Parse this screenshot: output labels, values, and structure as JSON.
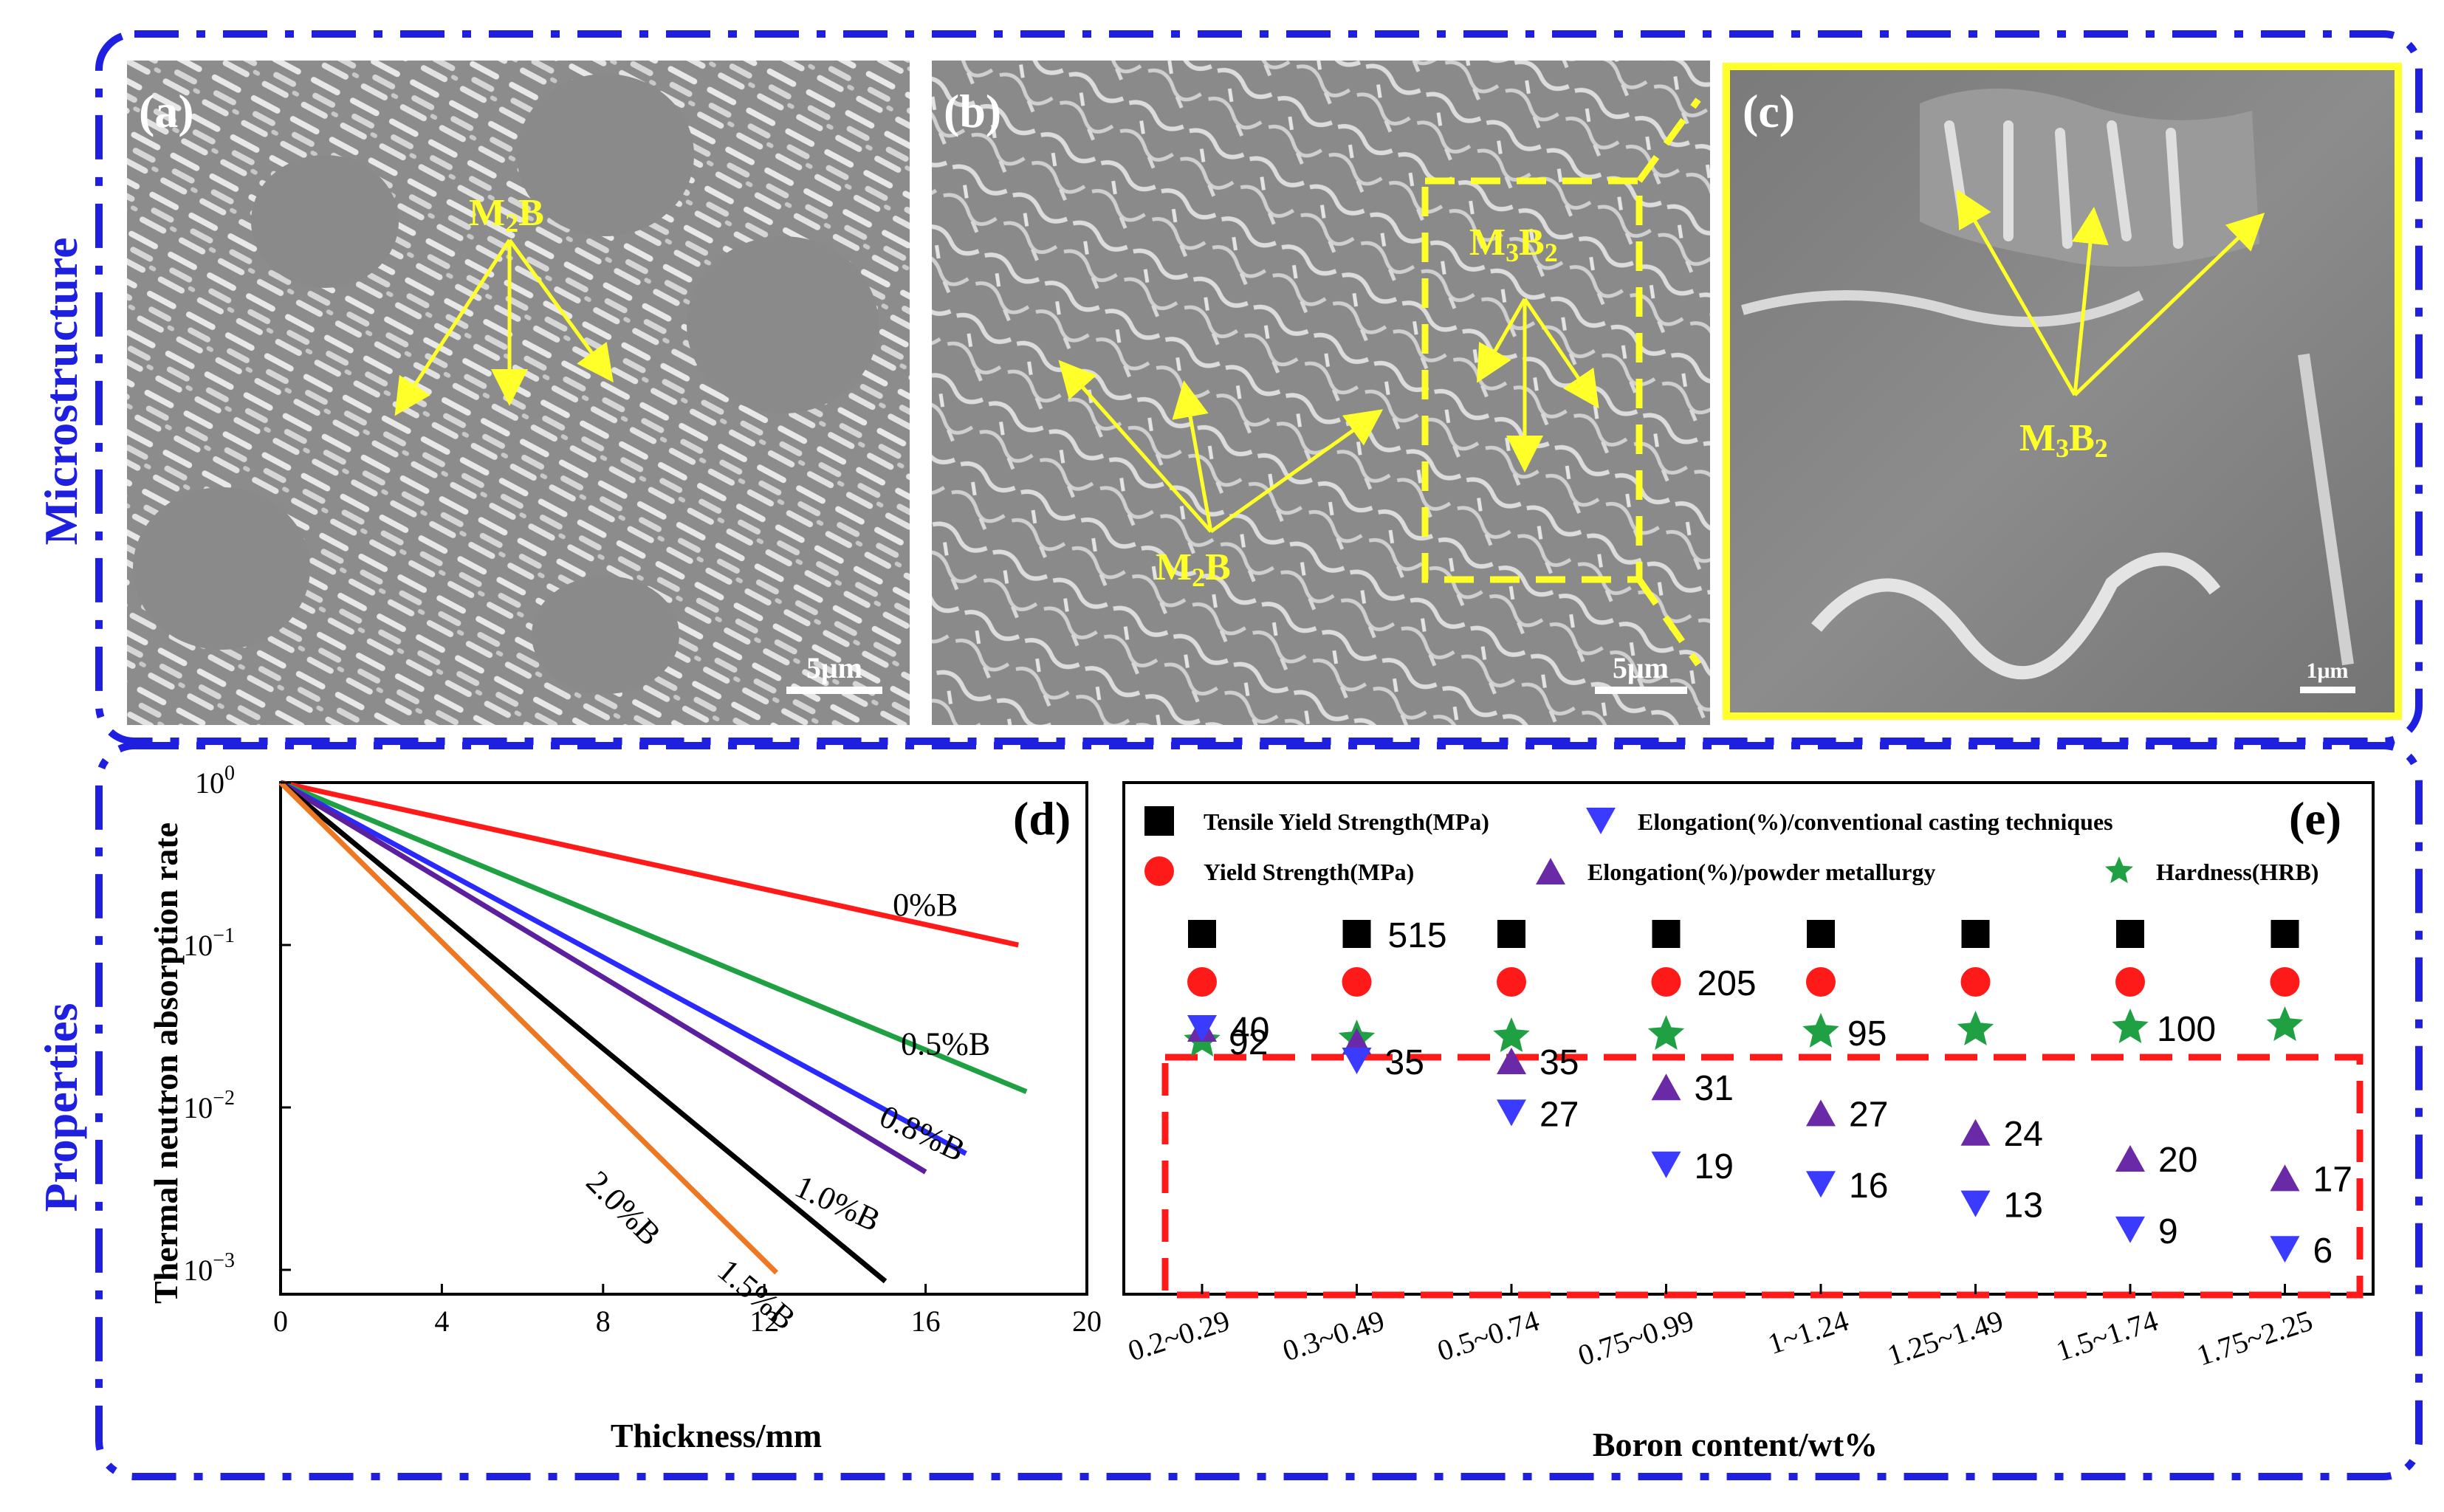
{
  "sections": {
    "top_title": "Microstructure",
    "bottom_title": "Properties"
  },
  "panels": {
    "a": {
      "label": "(a)",
      "phase": "M",
      "phase_sub": "2",
      "phase_b": "B",
      "scale_bar": "5μm"
    },
    "b": {
      "label": "(b)",
      "phase1": "M",
      "phase1_sub": "2",
      "phase1_b": "B",
      "phase2": "M",
      "phase2_sub": "3",
      "phase2_b": "B",
      "phase2_bsub": "2",
      "scale_bar": "5μm"
    },
    "c": {
      "label": "(c)",
      "phase": "M",
      "phase_sub": "3",
      "phase_b": "B",
      "phase_bsub": "2",
      "scale_bar": "1μm"
    }
  },
  "chart_data": [
    {
      "panel": "(d)",
      "type": "line",
      "xlabel": "Thickness/mm",
      "ylabel": "Thermal neutron absorption rate",
      "xlim": [
        0,
        20
      ],
      "ylim": [
        0.001,
        1
      ],
      "yscale": "log",
      "xticks": [
        "0",
        "4",
        "8",
        "12",
        "16",
        "20"
      ],
      "yticks": [
        {
          "base": "10",
          "exp": "0"
        },
        {
          "base": "10",
          "exp": "−1"
        },
        {
          "base": "10",
          "exp": "−2"
        },
        {
          "base": "10",
          "exp": "−3"
        }
      ],
      "series": [
        {
          "name": "0%B",
          "color": "#ff1a1a",
          "points": [
            [
              0,
              1
            ],
            [
              18.3,
              0.1
            ]
          ]
        },
        {
          "name": "0.5%B",
          "color": "#1fa043",
          "points": [
            [
              0,
              1
            ],
            [
              18.5,
              0.0125
            ]
          ]
        },
        {
          "name": "0.8%B",
          "color": "#2a2aff",
          "points": [
            [
              0,
              1
            ],
            [
              17.0,
              0.0052
            ]
          ]
        },
        {
          "name": "1.0%B",
          "color": "#5c1f9e",
          "points": [
            [
              0,
              1
            ],
            [
              16.0,
              0.004
            ]
          ]
        },
        {
          "name": "1.5%B",
          "color": "#000000",
          "points": [
            [
              0,
              1
            ],
            [
              15.0,
              0.00085
            ]
          ]
        },
        {
          "name": "2.0%B",
          "color": "#ee7722",
          "points": [
            [
              0,
              1
            ],
            [
              12.3,
              0.00096
            ]
          ]
        }
      ]
    },
    {
      "panel": "(e)",
      "type": "scatter",
      "xlabel": "Boron content/wt%",
      "categories": [
        "0.2~0.29",
        "0.3~0.49",
        "0.5~0.74",
        "0.75~0.99",
        "1~1.24",
        "1.25~1.49",
        "1.5~1.74",
        "1.75~2.25"
      ],
      "legend": [
        {
          "key": "tys",
          "label": "Tensile Yield Strength(MPa)",
          "marker": "square",
          "color": "#000000"
        },
        {
          "key": "elc",
          "label": "Elongation(%)/conventional casting techniques",
          "marker": "triangle-down",
          "color": "#3b3bff"
        },
        {
          "key": "ys",
          "label": "Yield Strength(MPa)",
          "marker": "circle",
          "color": "#ff1a1a"
        },
        {
          "key": "elp",
          "label": "Elongation(%)/powder metallurgy",
          "marker": "triangle-up",
          "color": "#6a2aa8"
        },
        {
          "key": "hrb",
          "label": "Hardness(HRB)",
          "marker": "star",
          "color": "#1fa043"
        }
      ],
      "tys_labels": [
        "",
        "515",
        "",
        "",
        "",
        "",
        "",
        ""
      ],
      "ys_labels": [
        "",
        "",
        "",
        "205",
        "",
        "",
        "",
        ""
      ],
      "hardness": [
        92,
        null,
        null,
        null,
        95,
        null,
        100,
        null
      ],
      "hardness_labels": [
        "92",
        "",
        "",
        "",
        "95",
        "",
        "100",
        ""
      ],
      "elongation_powder": [
        40,
        38,
        35,
        31,
        27,
        24,
        20,
        17
      ],
      "elongation_powder_labels": [
        "40",
        "",
        "35",
        "31",
        "27",
        "24",
        "20",
        "17"
      ],
      "elongation_casting": [
        40,
        35,
        27,
        19,
        16,
        13,
        9,
        6
      ],
      "elongation_casting_labels": [
        "",
        "35",
        "27",
        "19",
        "16",
        "13",
        "9",
        "6"
      ]
    }
  ]
}
